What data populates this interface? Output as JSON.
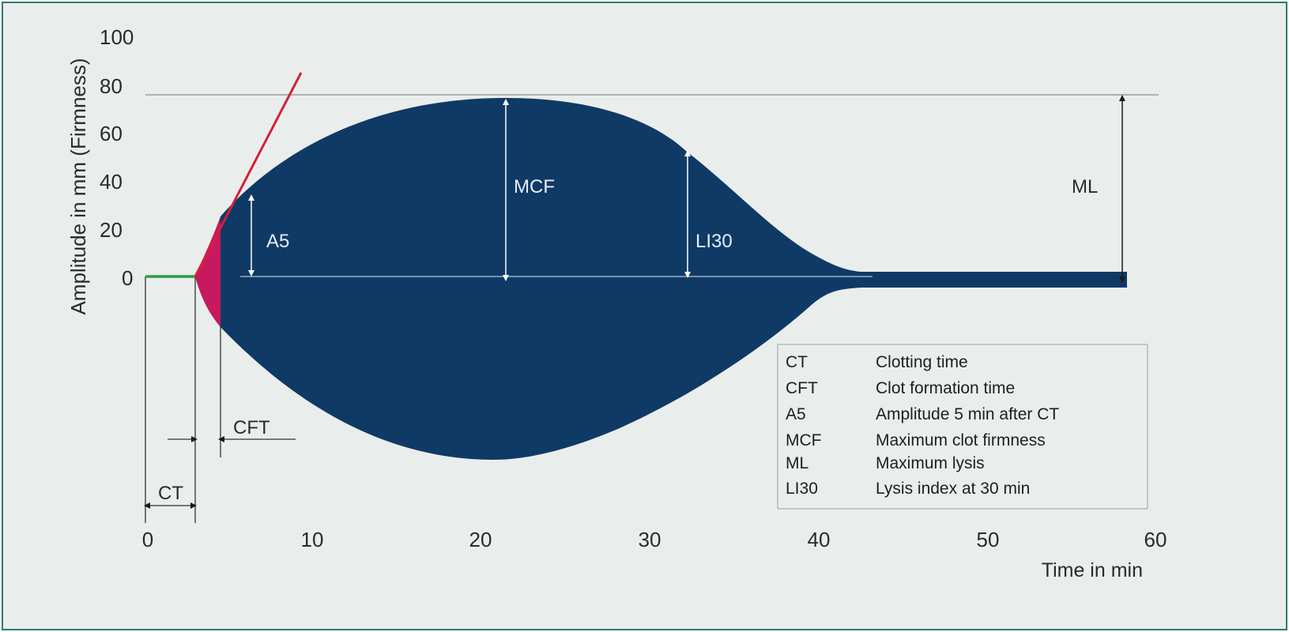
{
  "y_axis": {
    "label": "Amplitude in mm (Firmness)",
    "ticks": [
      "100",
      "80",
      "60",
      "40",
      "20",
      "0"
    ]
  },
  "x_axis": {
    "label": "Time in min",
    "ticks": [
      "0",
      "10",
      "20",
      "30",
      "40",
      "50",
      "60"
    ]
  },
  "markers": {
    "a5": "A5",
    "mcf": "MCF",
    "li30": "LI30",
    "ml": "ML",
    "cft": "CFT",
    "ct": "CT"
  },
  "legend": [
    {
      "abbr": "CT",
      "text": "Clotting time"
    },
    {
      "abbr": "CFT",
      "text": "Clot formation time"
    },
    {
      "abbr": "A5",
      "text": "Amplitude 5 min after CT"
    },
    {
      "abbr": "MCF",
      "text": "Maximum clot firmness"
    },
    {
      "abbr": "ML",
      "text": "Maximum lysis"
    },
    {
      "abbr": "LI30",
      "text": "Lysis index at 30 min"
    }
  ],
  "colors": {
    "trace_fill": "#0f3a66",
    "cft_fill": "#c8185f",
    "tangent_line": "#d4203a",
    "baseline": "#2e9a4a",
    "frame_border": "#2f7a6e",
    "background": "#e9eeec"
  }
}
